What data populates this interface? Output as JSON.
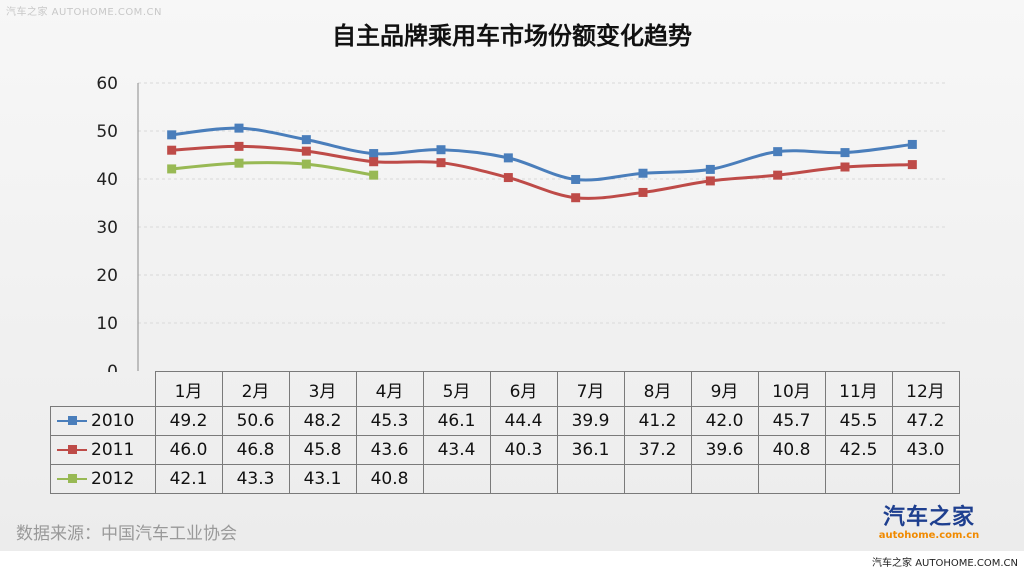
{
  "watermark_top": "汽车之家 AUTOHOME.COM.CN",
  "chart_data": {
    "type": "line",
    "title": "自主品牌乘用车市场份额变化趋势",
    "xlabel": "",
    "ylabel": "",
    "ylim": [
      0,
      60
    ],
    "yticks": [
      0,
      10,
      20,
      30,
      40,
      50,
      60
    ],
    "grid": true,
    "legend": "table-left",
    "categories": [
      "1月",
      "2月",
      "3月",
      "4月",
      "5月",
      "6月",
      "7月",
      "8月",
      "9月",
      "10月",
      "11月",
      "12月"
    ],
    "series": [
      {
        "name": "2010",
        "color": "#4a7ebb",
        "values": [
          49.2,
          50.6,
          48.2,
          45.3,
          46.1,
          44.4,
          39.9,
          41.2,
          42.0,
          45.7,
          45.5,
          47.2
        ]
      },
      {
        "name": "2011",
        "color": "#be4b48",
        "values": [
          46.0,
          46.8,
          45.8,
          43.6,
          43.4,
          40.3,
          36.1,
          37.2,
          39.6,
          40.8,
          42.5,
          43.0
        ]
      },
      {
        "name": "2012",
        "color": "#98b954",
        "values": [
          42.1,
          43.3,
          43.1,
          40.8,
          null,
          null,
          null,
          null,
          null,
          null,
          null,
          null
        ]
      }
    ]
  },
  "source_text": "数据来源：中国汽车工业协会",
  "logo": {
    "cn": "汽车之家",
    "en": "autohome.com.cn"
  },
  "footer_text": "汽车之家 AUTOHOME.COM.CN"
}
